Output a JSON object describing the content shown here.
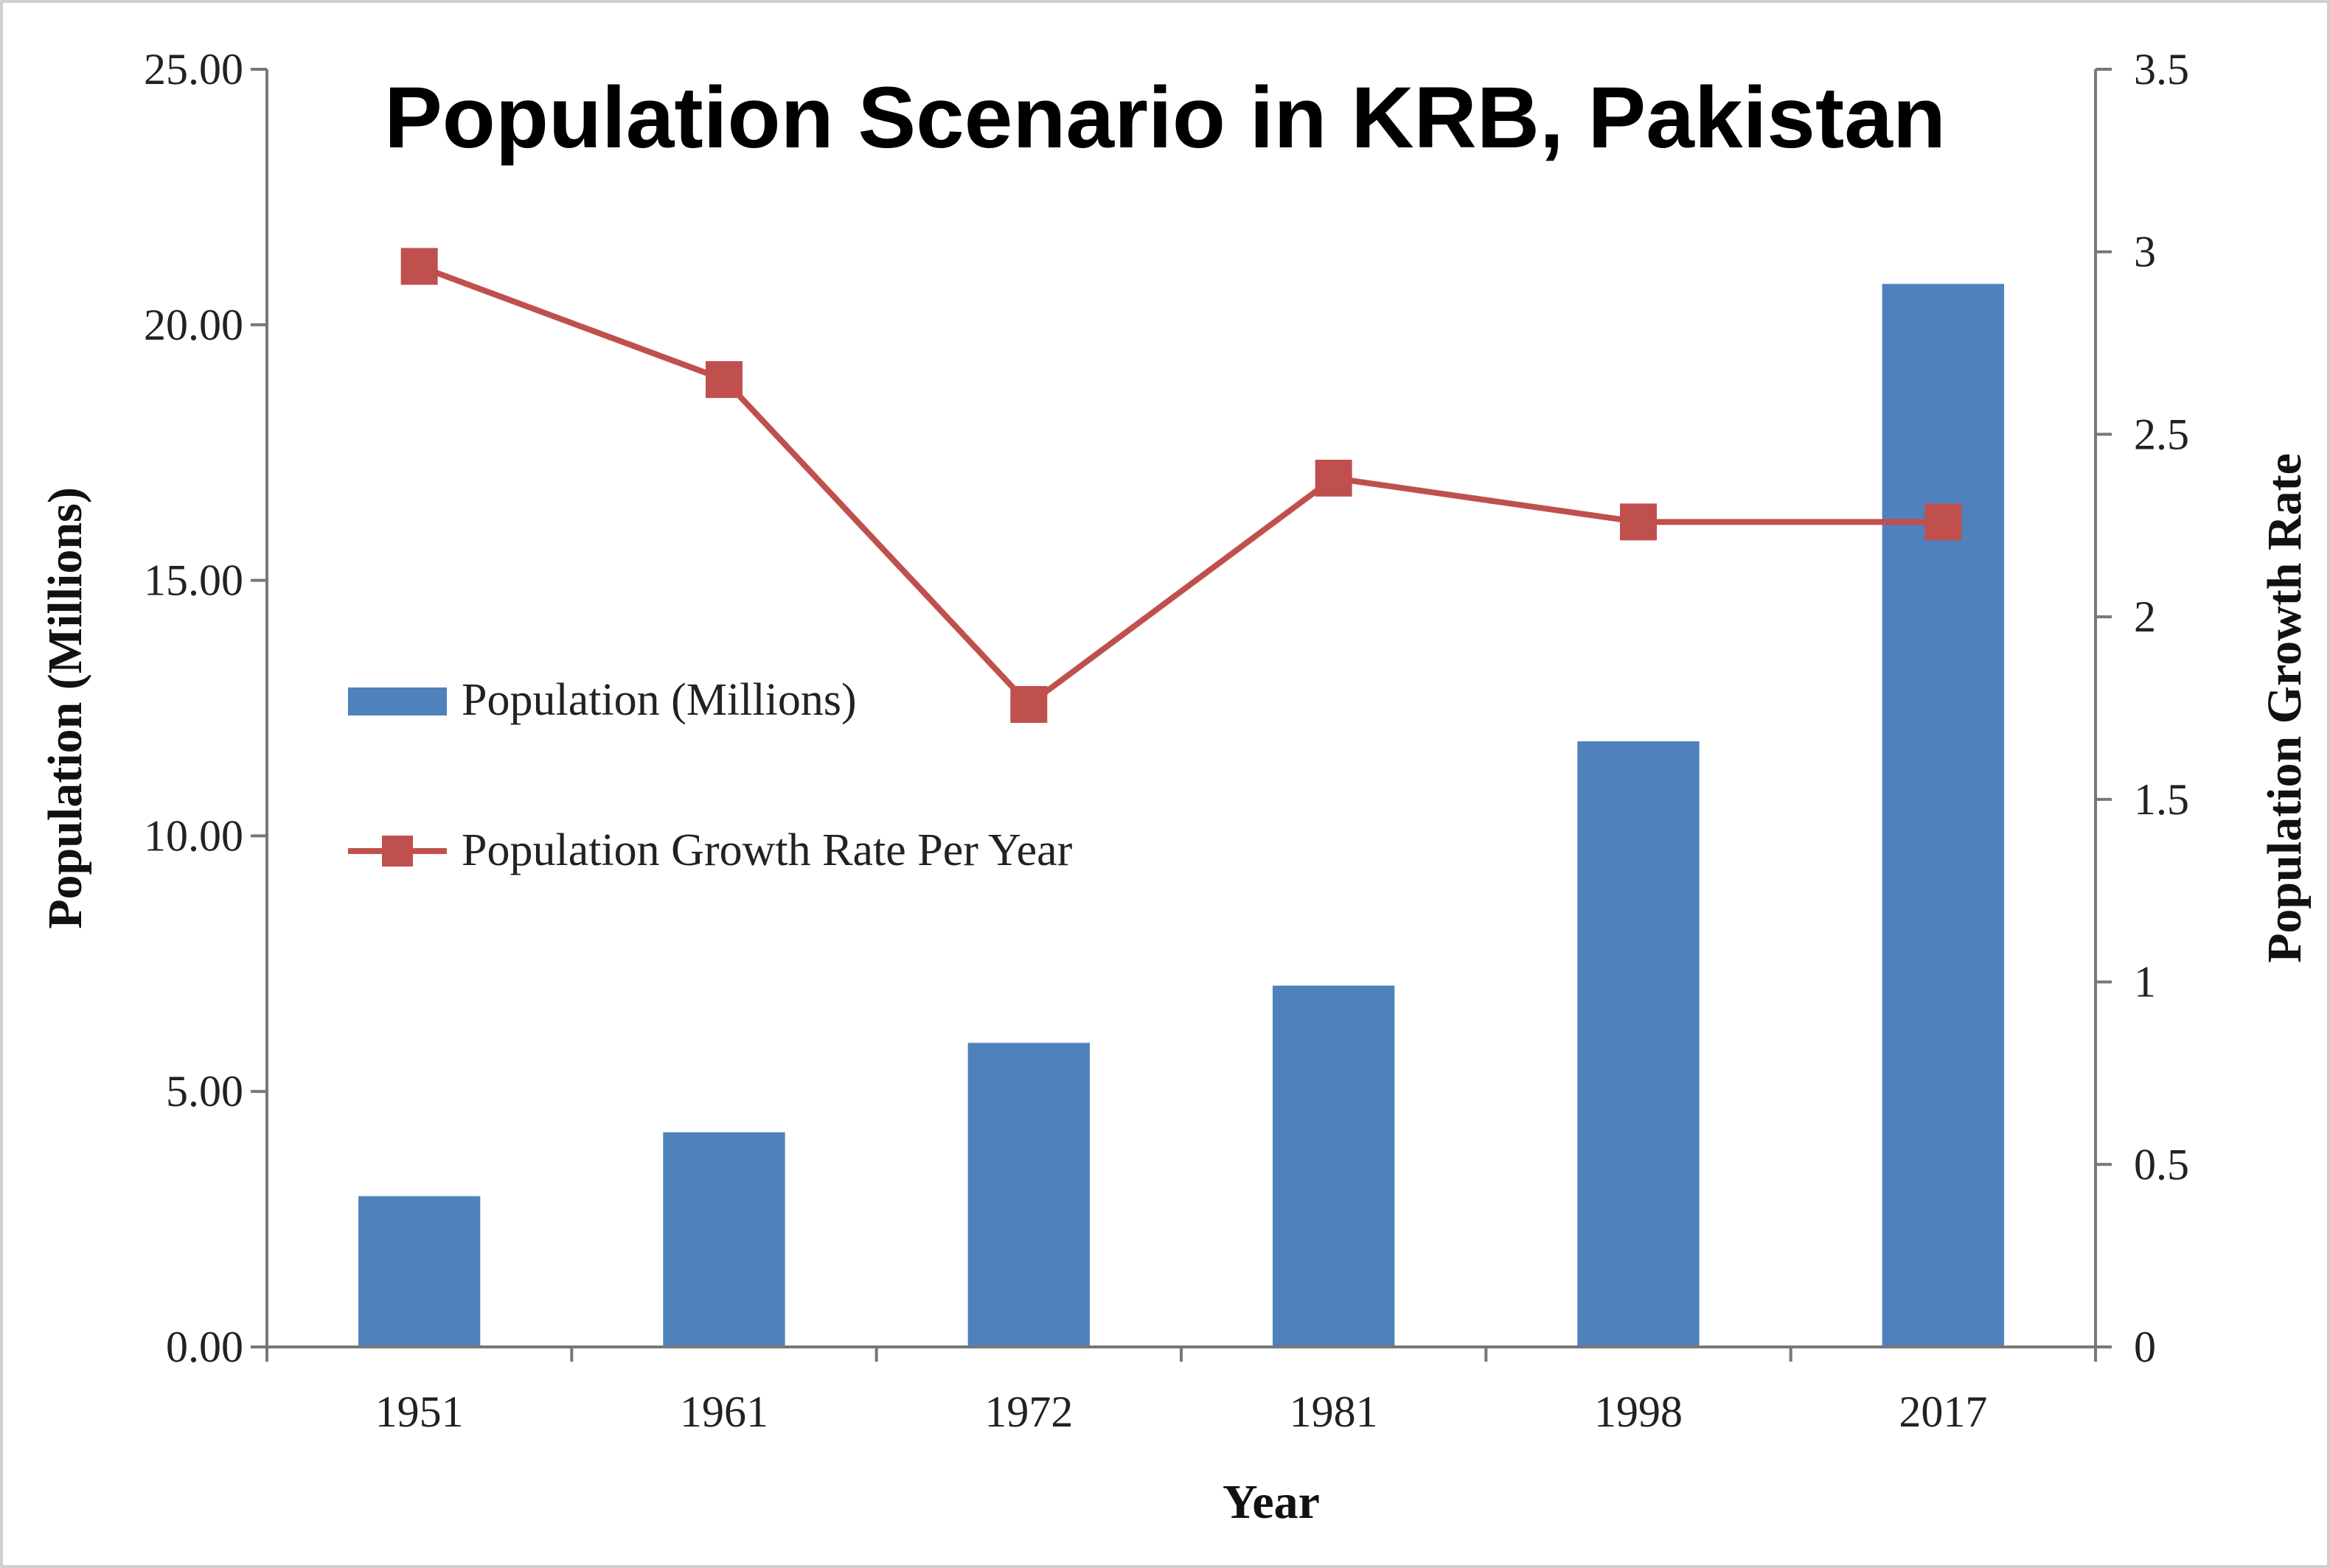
{
  "chart_data": {
    "type": "bar",
    "title": "Population Scenario in KRB, Pakistan",
    "xlabel": "Year",
    "ylabel": "Population  (Millions)",
    "y2label": "Population  Growth Rate",
    "categories": [
      "1951",
      "1961",
      "1972",
      "1981",
      "1998",
      "2017"
    ],
    "series": [
      {
        "name": "Population (Millions)",
        "type": "bar",
        "axis": "left",
        "color": "#4f81bd",
        "values": [
          2.95,
          4.2,
          5.95,
          7.07,
          11.85,
          20.8
        ]
      },
      {
        "name": "Population Growth Rate Per Year",
        "type": "line",
        "axis": "right",
        "color": "#c0504d",
        "marker": "square",
        "values": [
          2.96,
          2.65,
          1.76,
          2.38,
          2.26,
          2.26
        ]
      }
    ],
    "ylim": [
      0,
      25
    ],
    "y2lim": [
      0,
      3.5
    ],
    "yticks": [
      "0.00",
      "5.00",
      "10.00",
      "15.00",
      "20.00",
      "25.00"
    ],
    "y2ticks": [
      "0",
      "0.5",
      "1",
      "1.5",
      "2",
      "2.5",
      "3",
      "3.5"
    ],
    "legend_position": "center-left",
    "grid": false
  }
}
